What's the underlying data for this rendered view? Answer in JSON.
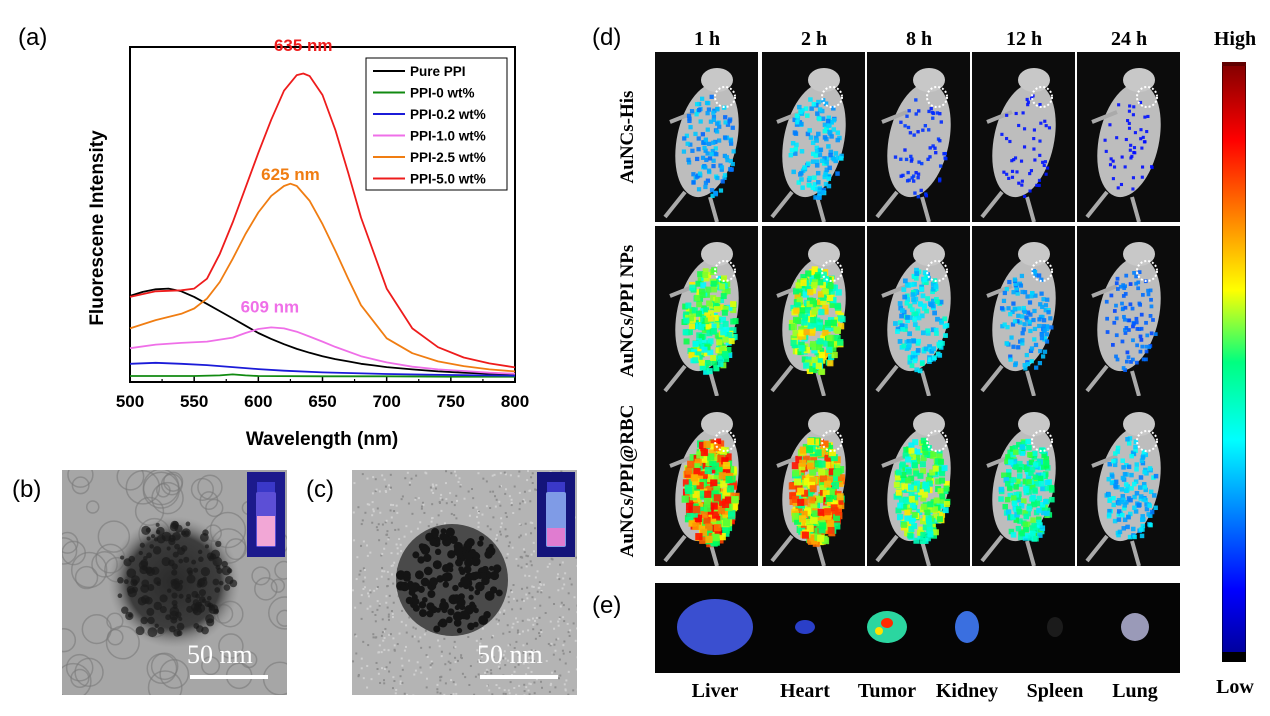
{
  "panels": {
    "a": "(a)",
    "b": "(b)",
    "c": "(c)",
    "d": "(d)",
    "e": "(e)"
  },
  "chart_data": {
    "type": "line",
    "xlabel": "Wavelength (nm)",
    "ylabel": "Fluorescene Intensity",
    "xlim": [
      500,
      800
    ],
    "xticks": [
      500,
      550,
      600,
      650,
      700,
      750,
      800
    ],
    "ylim": [
      0,
      100
    ],
    "yticks_visible": false,
    "legend_position": "top-right",
    "annotations": [
      {
        "text": "635 nm",
        "x": 635,
        "y": 97,
        "color": "#ee1c1c"
      },
      {
        "text": "625 nm",
        "x": 625,
        "y": 58,
        "color": "#f07d12"
      },
      {
        "text": "609 nm",
        "x": 609,
        "y": 18,
        "color": "#ef6fe8"
      }
    ],
    "series": [
      {
        "name": "Pure PPI",
        "color": "#000000",
        "x": [
          500,
          510,
          520,
          530,
          540,
          550,
          560,
          570,
          580,
          590,
          600,
          610,
          620,
          630,
          640,
          650,
          660,
          670,
          680,
          690,
          700,
          720,
          740,
          760,
          780,
          800
        ],
        "y": [
          24.8,
          26,
          26.8,
          27,
          26.2,
          24.5,
          22.4,
          20.2,
          18,
          15.8,
          13.6,
          11.8,
          10.2,
          8.8,
          7.6,
          6.6,
          5.7,
          5,
          4.3,
          3.8,
          3.3,
          2.6,
          2,
          1.6,
          1.3,
          1.1
        ]
      },
      {
        "name": "PPI-0 wt%",
        "color": "#118a11",
        "x": [
          500,
          550,
          570,
          580,
          590,
          600,
          650,
          700,
          750,
          800
        ],
        "y": [
          0.6,
          0.6,
          0.8,
          1.1,
          0.8,
          0.6,
          0.5,
          0.5,
          0.4,
          0.4
        ]
      },
      {
        "name": "PPI-0.2 wt%",
        "color": "#1b1bd8",
        "x": [
          500,
          520,
          540,
          560,
          580,
          600,
          620,
          650,
          700,
          750,
          800
        ],
        "y": [
          4.3,
          4.6,
          4.3,
          3.9,
          3.3,
          2.7,
          2.2,
          1.7,
          1.2,
          0.9,
          0.7
        ]
      },
      {
        "name": "PPI-1.0 wt%",
        "color": "#ef6fe8",
        "x": [
          500,
          520,
          540,
          560,
          580,
          590,
          600,
          610,
          620,
          630,
          640,
          650,
          660,
          680,
          700,
          720,
          740,
          760,
          780,
          800
        ],
        "y": [
          9,
          10.1,
          10.6,
          11,
          12.2,
          13.6,
          14.8,
          15.3,
          15,
          14,
          12.5,
          11,
          9.4,
          6.6,
          4.7,
          3.4,
          2.6,
          2.1,
          1.6,
          1.3
        ]
      },
      {
        "name": "PPI-2.5 wt%",
        "color": "#f07d12",
        "x": [
          500,
          520,
          540,
          550,
          560,
          570,
          580,
          590,
          600,
          610,
          620,
          625,
          630,
          640,
          650,
          660,
          670,
          680,
          700,
          720,
          740,
          760,
          780,
          800
        ],
        "y": [
          15,
          17.5,
          19.4,
          21,
          24,
          29,
          36,
          43.5,
          50,
          55,
          58,
          58.7,
          58,
          53.5,
          46.5,
          38.5,
          30,
          22,
          12,
          7.5,
          5,
          3.6,
          2.6,
          2
        ]
      },
      {
        "name": "PPI-5.0 wt%",
        "color": "#ee1c1c",
        "x": [
          500,
          520,
          540,
          550,
          560,
          570,
          580,
          590,
          600,
          610,
          620,
          630,
          635,
          640,
          650,
          660,
          670,
          680,
          700,
          720,
          740,
          760,
          780,
          800
        ],
        "y": [
          24.5,
          26.2,
          26.5,
          27,
          30,
          37.5,
          47,
          57.5,
          68,
          78,
          86.8,
          91.5,
          92,
          91.2,
          85.5,
          75,
          62,
          48.5,
          27,
          15,
          9.3,
          6.2,
          4.4,
          3.2
        ]
      }
    ]
  },
  "tem": {
    "b": {
      "scale": "50 nm"
    },
    "c": {
      "scale": "50 nm"
    }
  },
  "imaging": {
    "timepoints": [
      "1 h",
      "2 h",
      "8 h",
      "12 h",
      "24 h"
    ],
    "rows": [
      {
        "label": "AuNCs-His",
        "intensity": [
          0.25,
          0.3,
          0.07,
          0.03,
          0.02
        ]
      },
      {
        "label": "AuNCs/PPI NPs",
        "intensity": [
          0.6,
          0.65,
          0.35,
          0.25,
          0.15
        ]
      },
      {
        "label": "AuNCs/PPI@RBC",
        "intensity": [
          0.85,
          0.8,
          0.6,
          0.5,
          0.3
        ]
      }
    ]
  },
  "organs": [
    "Liver",
    "Heart",
    "Tumor",
    "Kidney",
    "Spleen",
    "Lung"
  ],
  "colorbar": {
    "high": "High",
    "low": "Low"
  }
}
